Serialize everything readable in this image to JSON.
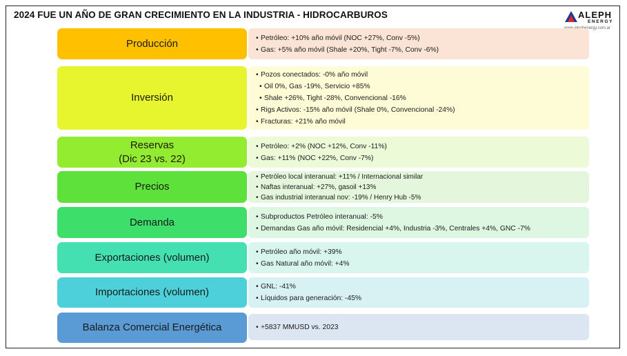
{
  "header": {
    "title": "2024 FUE UN AÑO DE GRAN CRECIMIENTO EN LA INDUSTRIA - HIDROCARBUROS",
    "logo_name": "ALEPH",
    "logo_sub": "ENERGY",
    "logo_url": "www.alephenergy.com.ar"
  },
  "rows": [
    {
      "category": "Producción",
      "cat_color": "#ffc000",
      "det_color": "#fbe4d5",
      "items": [
        "Petróleo: +10% año móvil (NOC +27%, Conv -5%)",
        "Gas: +5% año móvil (Shale +20%, Tight -7%, Conv -6%)"
      ]
    },
    {
      "category": "Inversión",
      "cat_color": "#e6f52e",
      "det_color": "#fdfcd6",
      "items": [
        "Pozos conectados: -0% año móvil",
        "Oil 0%, Gas -19%, Servicio +85%",
        "Shale +26%, Tight -28%, Convencional -16%",
        "Rigs Activos: -15% año móvil (Shale 0%, Convencional -24%)",
        "Fracturas: +21% año móvil"
      ]
    },
    {
      "category": "Reservas",
      "category2": "(Dic 23 vs. 22)",
      "cat_color": "#93ec2f",
      "det_color": "#ecfad8",
      "items": [
        "Petróleo: +2% (NOC +12%, Conv -11%)",
        "Gas: +11% (NOC +22%, Conv -7%)"
      ]
    },
    {
      "category": "Precios",
      "cat_color": "#5ee23b",
      "det_color": "#e4f7dc",
      "items": [
        "Petróleo local interanual: +11% / Internacional similar",
        "Naftas interanual: +27%, gasoil +13%",
        "Gas industrial interanual nov: -19% / Henry Hub -5%"
      ]
    },
    {
      "category": "Demanda",
      "cat_color": "#3dde6a",
      "det_color": "#ddf7e3",
      "items": [
        "Subproductos Petróleo interanual: -5%",
        "Demandas Gas año móvil: Residencial +4%, Industria -3%, Centrales +4%, GNC -7%"
      ]
    },
    {
      "category": "Exportaciones (volumen)",
      "cat_color": "#44e0b2",
      "det_color": "#d9f6ee",
      "items": [
        "Petróleo año móvil: +39%",
        "Gas Natural año móvil: +4%"
      ]
    },
    {
      "category": "Importaciones (volumen)",
      "cat_color": "#4dd0d9",
      "det_color": "#d8f2f4",
      "items": [
        "GNL: -41%",
        "Líquidos para generación: -45%"
      ]
    },
    {
      "category": "Balanza Comercial Energética",
      "cat_color": "#5b9bd5",
      "det_color": "#dce6f2",
      "items": [
        "+5837 MMUSD vs. 2023"
      ]
    }
  ]
}
